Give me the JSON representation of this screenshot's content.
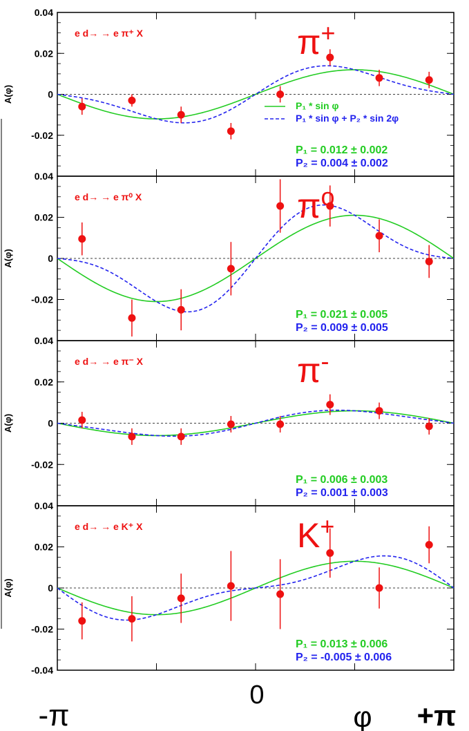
{
  "figure": {
    "x_label": "φ",
    "x_ticks": [
      "-π",
      "0",
      "+π"
    ]
  },
  "chart_data": [
    {
      "type": "scatter",
      "reaction": "e d→ → e π⁺ X",
      "particle": "π+",
      "ylabel": "A(φ)",
      "ylim": [
        -0.04,
        0.04
      ],
      "xlim": [
        -3.1416,
        3.1416
      ],
      "yticks": [
        "0.04",
        "0.02",
        "0",
        "-0.02"
      ],
      "points": [
        {
          "x": -2.75,
          "y": -0.006,
          "err": 0.004
        },
        {
          "x": -1.96,
          "y": -0.003,
          "err": 0.003
        },
        {
          "x": -1.18,
          "y": -0.01,
          "err": 0.004
        },
        {
          "x": -0.39,
          "y": -0.018,
          "err": 0.004
        },
        {
          "x": 0.39,
          "y": 0.0,
          "err": 0.004
        },
        {
          "x": 1.18,
          "y": 0.018,
          "err": 0.004
        },
        {
          "x": 1.96,
          "y": 0.008,
          "err": 0.004
        },
        {
          "x": 2.75,
          "y": 0.007,
          "err": 0.004
        }
      ],
      "legend": [
        {
          "label": "P₁ * sin φ",
          "color": "#22cc22",
          "style": "solid"
        },
        {
          "label": "P₁ * sin φ  + P₂ * sin 2φ",
          "color": "#2222ee",
          "style": "dashed"
        }
      ],
      "P1": 0.012,
      "P2": 0.004,
      "P1_text": "P₁ = 0.012 ± 0.002",
      "P2_text": "P₂ = 0.004 ± 0.002"
    },
    {
      "type": "scatter",
      "reaction": "e d→ → e π⁰ X",
      "particle": "π0",
      "ylabel": "A(φ)",
      "ylim": [
        -0.04,
        0.04
      ],
      "xlim": [
        -3.1416,
        3.1416
      ],
      "yticks": [
        "0.04",
        "0.02",
        "0",
        "-0.02"
      ],
      "points": [
        {
          "x": -2.75,
          "y": 0.0095,
          "err": 0.008
        },
        {
          "x": -1.96,
          "y": -0.029,
          "err": 0.009
        },
        {
          "x": -1.18,
          "y": -0.025,
          "err": 0.01
        },
        {
          "x": -0.39,
          "y": -0.005,
          "err": 0.013
        },
        {
          "x": 0.39,
          "y": 0.0255,
          "err": 0.013
        },
        {
          "x": 1.18,
          "y": 0.0255,
          "err": 0.01
        },
        {
          "x": 1.96,
          "y": 0.011,
          "err": 0.008
        },
        {
          "x": 2.75,
          "y": -0.0015,
          "err": 0.008
        }
      ],
      "P1": 0.021,
      "P2": 0.009,
      "P1_text": "P₁ = 0.021 ± 0.005",
      "P2_text": "P₂ = 0.009 ± 0.005"
    },
    {
      "type": "scatter",
      "reaction": "e d→ → e π⁻ X",
      "particle": "π-",
      "ylabel": "A(φ)",
      "ylim": [
        -0.04,
        0.04
      ],
      "xlim": [
        -3.1416,
        3.1416
      ],
      "yticks": [
        "0.04",
        "0.02",
        "0",
        "-0.02"
      ],
      "points": [
        {
          "x": -2.75,
          "y": 0.0015,
          "err": 0.004
        },
        {
          "x": -1.96,
          "y": -0.0065,
          "err": 0.004
        },
        {
          "x": -1.18,
          "y": -0.0065,
          "err": 0.004
        },
        {
          "x": -0.39,
          "y": -0.0005,
          "err": 0.004
        },
        {
          "x": 0.39,
          "y": -0.0005,
          "err": 0.004
        },
        {
          "x": 1.18,
          "y": 0.009,
          "err": 0.005
        },
        {
          "x": 1.96,
          "y": 0.006,
          "err": 0.004
        },
        {
          "x": 2.75,
          "y": -0.0015,
          "err": 0.004
        }
      ],
      "P1": 0.006,
      "P2": 0.001,
      "P1_text": "P₁ = 0.006 ± 0.003",
      "P2_text": "P₂ = 0.001 ± 0.003"
    },
    {
      "type": "scatter",
      "reaction": "e d→ → e K⁺ X",
      "particle": "K+",
      "ylabel": "A(φ)",
      "ylim": [
        -0.04,
        0.04
      ],
      "xlim": [
        -3.1416,
        3.1416
      ],
      "yticks": [
        "0.04",
        "0.02",
        "0",
        "-0.02",
        "-0.04"
      ],
      "points": [
        {
          "x": -2.75,
          "y": -0.016,
          "err": 0.009
        },
        {
          "x": -1.96,
          "y": -0.015,
          "err": 0.011
        },
        {
          "x": -1.18,
          "y": -0.005,
          "err": 0.012
        },
        {
          "x": -0.39,
          "y": 0.001,
          "err": 0.017
        },
        {
          "x": 0.39,
          "y": -0.003,
          "err": 0.017
        },
        {
          "x": 1.18,
          "y": 0.017,
          "err": 0.012
        },
        {
          "x": 1.96,
          "y": 0.0,
          "err": 0.01
        },
        {
          "x": 2.75,
          "y": 0.021,
          "err": 0.009
        }
      ],
      "P1": 0.013,
      "P2": -0.005,
      "P1_text": "P₁ = 0.013 ± 0.006",
      "P2_text": "P₂ = -0.005 ± 0.006"
    }
  ],
  "colors": {
    "data": "#ee1111",
    "fit1": "#22cc22",
    "fit2": "#2222ee",
    "label": "#ee1111"
  }
}
